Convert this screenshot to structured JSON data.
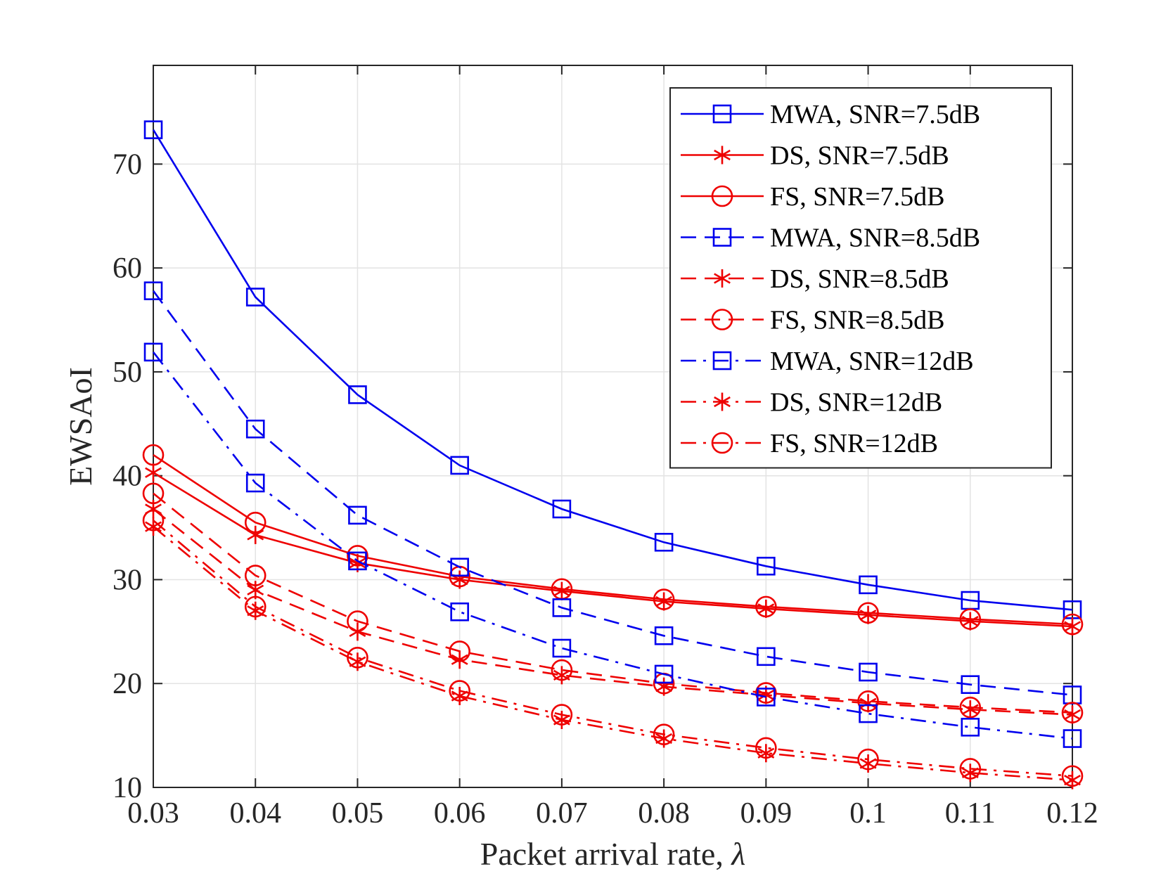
{
  "chart_data": {
    "type": "line",
    "xlabel": "Packet arrival rate, ",
    "xlabel_symbol": "λ",
    "ylabel": "EWSAoI",
    "x": [
      0.03,
      0.04,
      0.05,
      0.06,
      0.07,
      0.08,
      0.09,
      0.1,
      0.11,
      0.12
    ],
    "x_tick_labels": [
      "0.03",
      "0.04",
      "0.05",
      "0.06",
      "0.07",
      "0.08",
      "0.09",
      "0.1",
      "0.11",
      "0.12"
    ],
    "xlim": [
      0.03,
      0.12
    ],
    "y_ticks": [
      10,
      20,
      30,
      40,
      50,
      60,
      70
    ],
    "y_tick_labels": [
      "10",
      "20",
      "30",
      "40",
      "50",
      "60",
      "70"
    ],
    "ylim": [
      10,
      79.5
    ],
    "grid": true,
    "legend_position": "top-right",
    "colors": {
      "blue": "#0000ee",
      "red": "#ee0000"
    },
    "series": [
      {
        "name": "MWA, SNR=7.5dB",
        "color": "blue",
        "marker": "square",
        "line": "solid",
        "values": [
          73.3,
          57.2,
          47.8,
          41.0,
          36.8,
          33.6,
          31.3,
          29.5,
          28.0,
          27.1
        ]
      },
      {
        "name": "DS, SNR=7.5dB",
        "color": "red",
        "marker": "asterisk",
        "line": "solid",
        "values": [
          40.3,
          34.3,
          31.6,
          30.0,
          28.9,
          27.9,
          27.2,
          26.6,
          26.0,
          25.5
        ]
      },
      {
        "name": "FS, SNR=7.5dB",
        "color": "red",
        "marker": "circle",
        "line": "solid",
        "values": [
          42.0,
          35.5,
          32.3,
          30.3,
          29.1,
          28.1,
          27.4,
          26.8,
          26.2,
          25.7
        ]
      },
      {
        "name": "MWA, SNR=8.5dB",
        "color": "blue",
        "marker": "square",
        "line": "dashed",
        "values": [
          57.8,
          44.5,
          36.2,
          31.2,
          27.3,
          24.6,
          22.6,
          21.1,
          19.9,
          18.9
        ]
      },
      {
        "name": "DS, SNR=8.5dB",
        "color": "red",
        "marker": "asterisk",
        "line": "dashed",
        "values": [
          36.8,
          29.0,
          25.0,
          22.3,
          20.8,
          19.7,
          18.9,
          18.1,
          17.5,
          17.0
        ]
      },
      {
        "name": "FS, SNR=8.5dB",
        "color": "red",
        "marker": "circle",
        "line": "dashed",
        "values": [
          38.3,
          30.4,
          26.0,
          23.1,
          21.3,
          20.0,
          19.1,
          18.3,
          17.7,
          17.2
        ]
      },
      {
        "name": "MWA, SNR=12dB",
        "color": "blue",
        "marker": "square",
        "line": "dashdot",
        "values": [
          51.9,
          39.3,
          31.8,
          26.9,
          23.4,
          20.9,
          18.7,
          17.1,
          15.8,
          14.7
        ]
      },
      {
        "name": "DS, SNR=12dB",
        "color": "red",
        "marker": "asterisk",
        "line": "dashdot",
        "values": [
          35.1,
          27.0,
          22.1,
          18.8,
          16.5,
          14.7,
          13.3,
          12.3,
          11.4,
          10.7
        ]
      },
      {
        "name": "FS, SNR=12dB",
        "color": "red",
        "marker": "circle",
        "line": "dashdot",
        "values": [
          35.7,
          27.4,
          22.5,
          19.3,
          17.0,
          15.1,
          13.8,
          12.7,
          11.8,
          11.1
        ]
      }
    ]
  }
}
